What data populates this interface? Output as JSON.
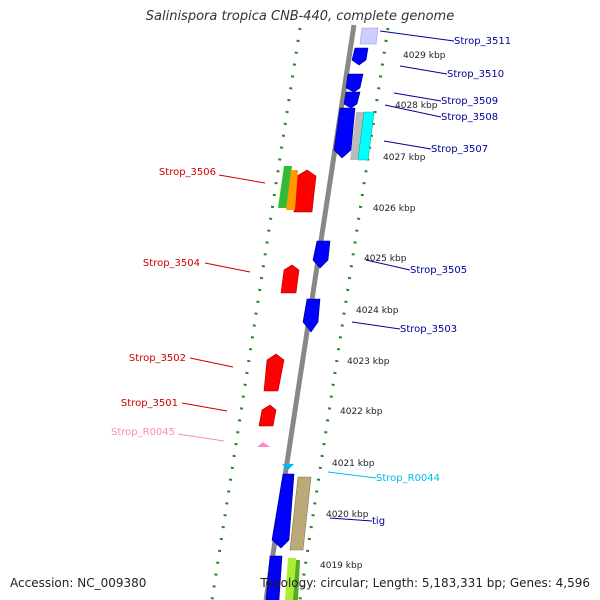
{
  "title": "Salinispora tropica CNB-440, complete genome",
  "footer": {
    "accession": "Accession: NC_009380",
    "summary": "Topology: circular; Length: 5,183,331 bp; Genes: 4,596"
  },
  "ticks": [
    "4029 kbp",
    "4028 kbp",
    "4027 kbp",
    "4026 kbp",
    "4025 kbp",
    "4024 kbp",
    "4023 kbp",
    "4022 kbp",
    "4021 kbp",
    "4020 kbp",
    "4019 kbp"
  ],
  "labels_right": [
    "Strop_3511",
    "Strop_3510",
    "Strop_3509",
    "Strop_3508",
    "Strop_3507",
    "Strop_3505",
    "Strop_3503",
    "Strop_R0044",
    "tig"
  ],
  "labels_left": [
    "Strop_3506",
    "Strop_3504",
    "Strop_3502",
    "Strop_3501",
    "Strop_R0045"
  ],
  "colors": {
    "forward": "#ff0000",
    "reverse": "#0000ff",
    "forward_label": "#cc0000",
    "reverse_label": "#000099",
    "rrna_label": "#ff88bb",
    "trna_label": "#00bbee",
    "backbone": "#888888",
    "dots": "#228822"
  }
}
